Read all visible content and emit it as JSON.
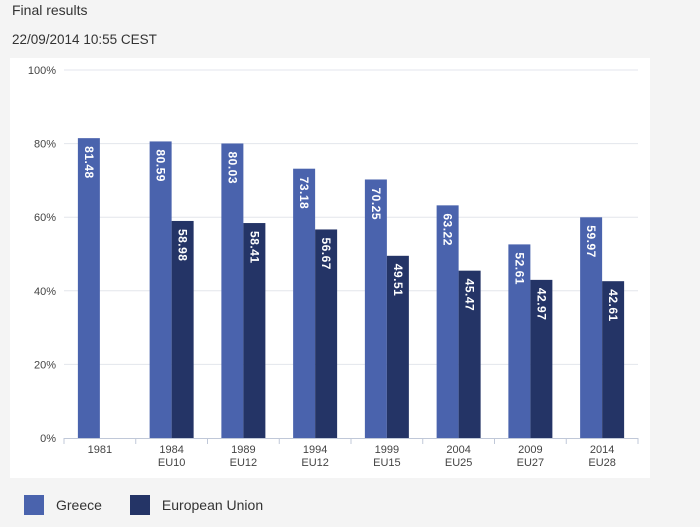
{
  "header": {
    "title": "Final results",
    "timestamp": "22/09/2014 10:55 CEST"
  },
  "colors": {
    "greece": "#4a63ad",
    "eu": "#243466"
  },
  "chart_data": {
    "type": "bar",
    "categories": [
      {
        "year": "1981",
        "sub": ""
      },
      {
        "year": "1984",
        "sub": "EU10"
      },
      {
        "year": "1989",
        "sub": "EU12"
      },
      {
        "year": "1994",
        "sub": "EU12"
      },
      {
        "year": "1999",
        "sub": "EU15"
      },
      {
        "year": "2004",
        "sub": "EU25"
      },
      {
        "year": "2009",
        "sub": "EU27"
      },
      {
        "year": "2014",
        "sub": "EU28"
      }
    ],
    "series": [
      {
        "name": "Greece",
        "values": [
          81.48,
          80.59,
          80.03,
          73.18,
          70.25,
          63.22,
          52.61,
          59.97
        ]
      },
      {
        "name": "European Union",
        "values": [
          null,
          58.98,
          58.41,
          56.67,
          49.51,
          45.47,
          42.97,
          42.61
        ]
      }
    ],
    "yticks": [
      "0%",
      "20%",
      "40%",
      "60%",
      "80%",
      "100%"
    ],
    "ylim": [
      0,
      100
    ],
    "grid": true,
    "legend_position": "bottom-left"
  }
}
